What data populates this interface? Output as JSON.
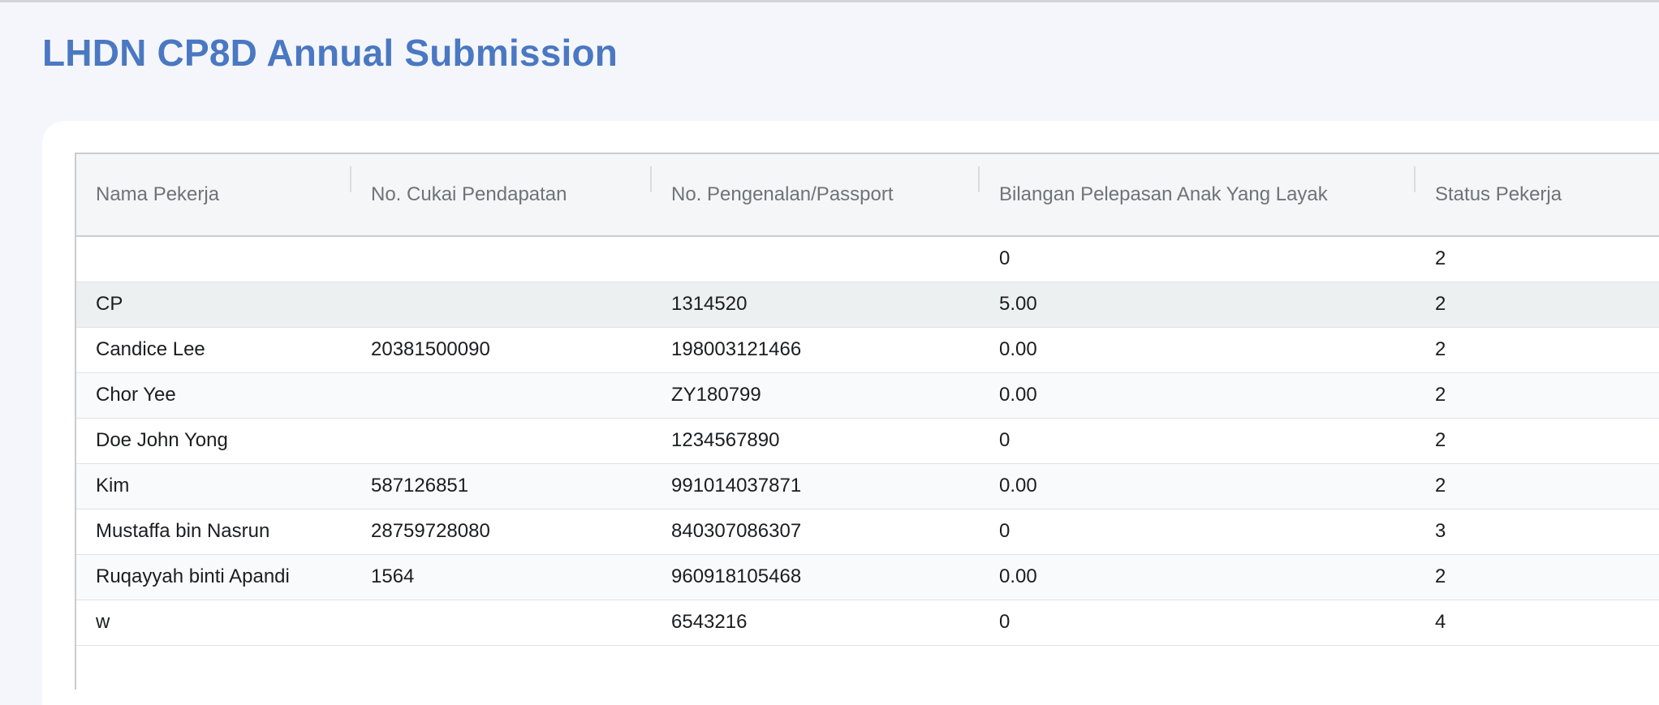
{
  "page": {
    "title": "LHDN CP8D Annual Submission"
  },
  "table": {
    "columns": [
      "Nama Pekerja",
      "No. Cukai Pendapatan",
      "No. Pengenalan/Passport",
      "Bilangan Pelepasan Anak Yang Layak",
      "Status Pekerja"
    ],
    "rows": [
      [
        "",
        "",
        "",
        "0",
        "2"
      ],
      [
        "CP",
        "",
        "1314520",
        "5.00",
        "2"
      ],
      [
        "Candice Lee",
        "20381500090",
        "198003121466",
        "0.00",
        "2"
      ],
      [
        "Chor Yee",
        "",
        "ZY180799",
        "0.00",
        "2"
      ],
      [
        "Doe John Yong",
        "",
        "1234567890",
        "0",
        "2"
      ],
      [
        "Kim",
        "587126851",
        "991014037871",
        "0.00",
        "2"
      ],
      [
        "Mustaffa bin Nasrun",
        "28759728080",
        "840307086307",
        "0",
        "3"
      ],
      [
        "Ruqayyah binti Apandi",
        "1564",
        "960918105468",
        "0.00",
        "2"
      ],
      [
        "w",
        "",
        "6543216",
        "0",
        "4"
      ]
    ],
    "hovered_row": 1
  },
  "colors": {
    "title": "#4a78c2",
    "page_background": "#f5f6fb",
    "header_background": "#f4f6f7",
    "hover_row": "#edf0f1"
  }
}
